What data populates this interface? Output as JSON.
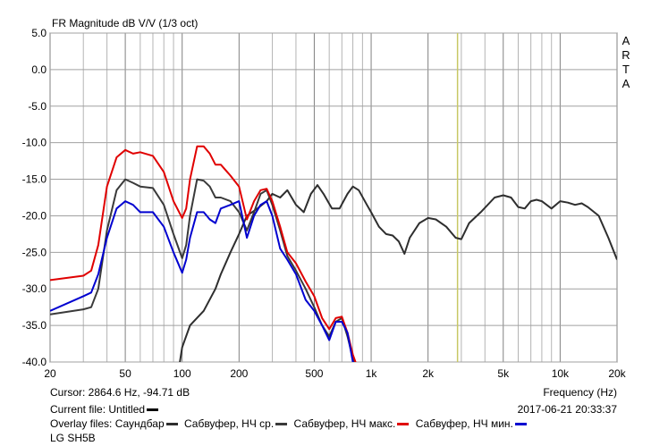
{
  "chart_data": {
    "type": "line",
    "title": "FR Magnitude dB V/V (1/3 oct)",
    "watermark": "ARTA",
    "x_label": "Frequency (Hz)",
    "log_x": true,
    "grid": true,
    "xlim": [
      20,
      20000
    ],
    "ylim": [
      -40,
      5
    ],
    "xticks": [
      20,
      50,
      100,
      200,
      500,
      {
        "value": 1000,
        "label": "1k"
      },
      {
        "value": 2000,
        "label": "2k"
      },
      {
        "value": 5000,
        "label": "5k"
      },
      {
        "value": 10000,
        "label": "10k"
      },
      {
        "value": 20000,
        "label": "20k"
      }
    ],
    "xgrid_minor": [
      30,
      40,
      60,
      70,
      80,
      90,
      300,
      400,
      600,
      700,
      800,
      900,
      3000,
      4000,
      6000,
      7000,
      8000,
      9000
    ],
    "yticks": [
      {
        "value": 5,
        "label": "5.0"
      },
      {
        "value": 0,
        "label": "0.0"
      },
      {
        "value": -5,
        "label": "-5.0"
      },
      {
        "value": -10,
        "label": "-10.0"
      },
      {
        "value": -15,
        "label": "-15.0"
      },
      {
        "value": -20,
        "label": "-20.0"
      },
      {
        "value": -25,
        "label": "-25.0"
      },
      {
        "value": -30,
        "label": "-30.0"
      },
      {
        "value": -35,
        "label": "-35.0"
      },
      {
        "value": -40,
        "label": "-40.0"
      }
    ],
    "cursor": {
      "label": "Cursor: 2864.6 Hz, -94.71 dB",
      "x": 2864.6,
      "color": "#c8c864"
    },
    "current_file": {
      "label": "Current file:",
      "name": "Untitled",
      "color": "#000000"
    },
    "timestamp": "2017-06-21  20:33:37",
    "overlay_label": "Overlay files:",
    "note": "LG SH5B",
    "series": [
      {
        "name": "Саундбар",
        "color": "#2e2e2e",
        "x": [
          97,
          100,
          110,
          130,
          150,
          160,
          180,
          200,
          220,
          250,
          280,
          300,
          330,
          360,
          400,
          440,
          480,
          520,
          560,
          620,
          680,
          750,
          800,
          860,
          950,
          1000,
          1100,
          1200,
          1300,
          1400,
          1500,
          1600,
          1800,
          2000,
          2200,
          2500,
          2800,
          3000,
          3300,
          3800,
          4500,
          5000,
          5500,
          6000,
          6500,
          7000,
          7500,
          8000,
          9000,
          10000,
          11000,
          12000,
          13000,
          14000,
          16000,
          18000,
          20000
        ],
        "values": [
          -40.2,
          -38,
          -35,
          -33,
          -30,
          -28,
          -25,
          -22.5,
          -20,
          -19,
          -18,
          -17,
          -17.5,
          -16.5,
          -18.5,
          -19.5,
          -17,
          -15.8,
          -17,
          -19,
          -19,
          -17,
          -16,
          -16.5,
          -18.5,
          -19.5,
          -21.5,
          -22.5,
          -22.7,
          -23.5,
          -25.2,
          -23,
          -21,
          -20.3,
          -20.5,
          -21.5,
          -23,
          -23.2,
          -21,
          -19.5,
          -17.5,
          -17.2,
          -17.5,
          -18.8,
          -19,
          -18,
          -17.8,
          -18,
          -19,
          -18,
          -18.2,
          -18.5,
          -18.3,
          -18.8,
          -20,
          -23,
          -26
        ]
      },
      {
        "name": "Сабвуфер, НЧ ср.",
        "color": "#3a3a3a",
        "x": [
          20,
          30,
          33,
          36,
          40,
          45,
          50,
          55,
          60,
          70,
          80,
          90,
          100,
          105,
          110,
          120,
          130,
          140,
          150,
          160,
          180,
          200,
          220,
          240,
          260,
          280,
          300,
          330,
          360,
          400,
          450,
          500,
          550,
          600,
          650,
          700,
          750,
          800,
          840
        ],
        "values": [
          -33.5,
          -32.8,
          -32.5,
          -30,
          -22,
          -16.5,
          -15,
          -15.5,
          -16,
          -16.2,
          -18.5,
          -22.5,
          -25.8,
          -24,
          -20,
          -15,
          -15.2,
          -16,
          -17.5,
          -17.5,
          -18,
          -19.5,
          -22,
          -19.5,
          -17,
          -16.5,
          -18.5,
          -22,
          -25.5,
          -27.5,
          -30,
          -32.5,
          -35,
          -36.5,
          -34.5,
          -34,
          -36.5,
          -39.5,
          -40.5
        ]
      },
      {
        "name": "Сабвуфер, НЧ макс.",
        "color": "#e00000",
        "x": [
          20,
          30,
          33,
          36,
          40,
          45,
          50,
          55,
          60,
          70,
          80,
          90,
          100,
          105,
          110,
          120,
          130,
          140,
          150,
          160,
          180,
          200,
          220,
          240,
          260,
          280,
          300,
          330,
          360,
          400,
          450,
          500,
          550,
          600,
          650,
          700,
          750,
          800,
          840
        ],
        "values": [
          -28.8,
          -28.2,
          -27.5,
          -24,
          -16,
          -12,
          -11,
          -11.5,
          -11.3,
          -11.8,
          -14,
          -18,
          -20.3,
          -19,
          -15,
          -10.5,
          -10.5,
          -11.5,
          -13,
          -13,
          -14.5,
          -16,
          -20.5,
          -18,
          -16.5,
          -16.3,
          -18,
          -21.5,
          -25,
          -26.5,
          -29,
          -31,
          -34,
          -35.5,
          -34,
          -33.8,
          -36,
          -39,
          -40.5
        ]
      },
      {
        "name": "Сабвуфер, НЧ мин.",
        "color": "#0000d0",
        "x": [
          20,
          30,
          33,
          36,
          40,
          45,
          50,
          55,
          60,
          70,
          80,
          90,
          100,
          105,
          110,
          120,
          130,
          140,
          150,
          160,
          180,
          200,
          220,
          240,
          260,
          280,
          300,
          330,
          360,
          400,
          450,
          500,
          550,
          600,
          650,
          700,
          750,
          800,
          840
        ],
        "values": [
          -33,
          -31,
          -30.5,
          -28,
          -23,
          -19,
          -18,
          -18.5,
          -19.5,
          -19.5,
          -21.5,
          -25,
          -27.8,
          -26,
          -23,
          -19.5,
          -19.5,
          -20.5,
          -21,
          -19,
          -18.5,
          -18,
          -23,
          -20,
          -18.5,
          -18,
          -20,
          -24.5,
          -26,
          -28,
          -31.5,
          -33,
          -35,
          -37,
          -34.5,
          -34.5,
          -36,
          -40,
          -40.5
        ]
      }
    ]
  }
}
